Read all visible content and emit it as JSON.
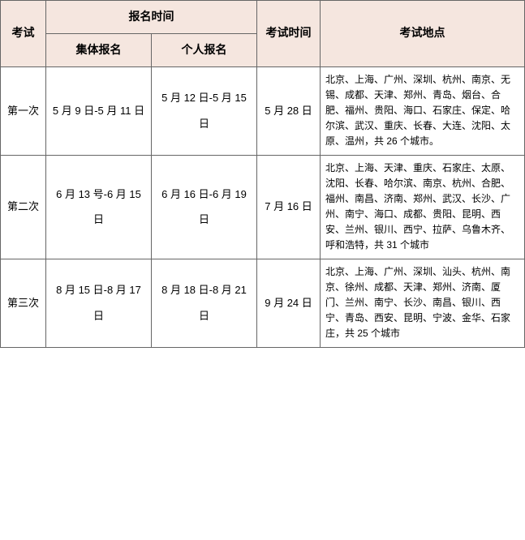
{
  "colors": {
    "header_bg": "#f5e6df",
    "border": "#666666",
    "text": "#000000",
    "bg": "#ffffff"
  },
  "headers": {
    "exam": "考试",
    "reg_time": "报名时间",
    "group_reg": "集体报名",
    "indiv_reg": "个人报名",
    "exam_time": "考试时间",
    "exam_loc": "考试地点"
  },
  "rows": [
    {
      "name": "第一次",
      "group": "5 月 9 日-5 月 11 日",
      "indiv": "5 月 12 日-5 月 15 日",
      "time": "5 月 28 日",
      "loc": "北京、上海、广州、深圳、杭州、南京、无锡、成都、天津、郑州、青岛、烟台、合肥、福州、贵阳、海口、石家庄、保定、哈尔滨、武汉、重庆、长春、大连、沈阳、太原、温州，共 26 个城市。"
    },
    {
      "name": "第二次",
      "group": "6 月 13 号-6 月 15 日",
      "indiv": "6 月 16 日-6 月 19 日",
      "time": "7 月 16 日",
      "loc": "北京、上海、天津、重庆、石家庄、太原、沈阳、长春、哈尔滨、南京、杭州、合肥、福州、南昌、济南、郑州、武汉、长沙、广州、南宁、海口、成都、贵阳、昆明、西安、兰州、银川、西宁、拉萨、乌鲁木齐、呼和浩特，共 31 个城市"
    },
    {
      "name": "第三次",
      "group": "8 月 15 日-8 月 17 日",
      "indiv": "8 月 18 日-8 月 21 日",
      "time": "9 月 24 日",
      "loc": "北京、上海、广州、深圳、汕头、杭州、南京、徐州、成都、天津、郑州、济南、厦门、兰州、南宁、长沙、南昌、银川、西宁、青岛、西安、昆明、宁波、金华、石家庄，共 25 个城市"
    }
  ]
}
